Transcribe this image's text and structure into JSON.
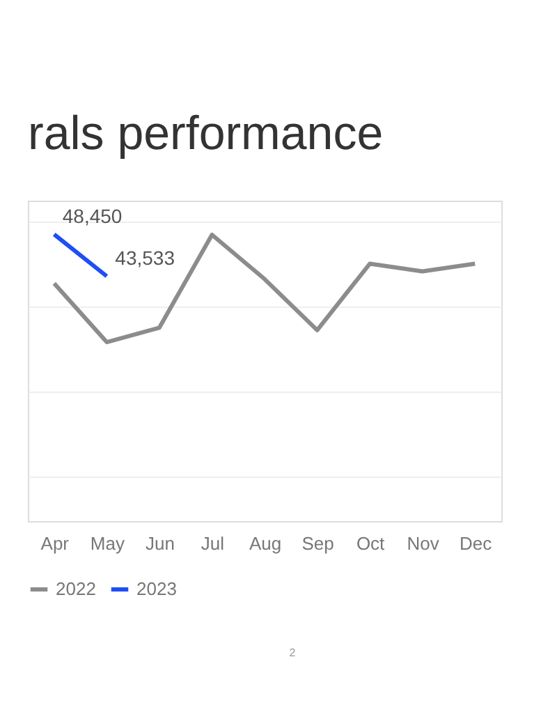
{
  "chart_data": {
    "type": "line",
    "title": "rals performance",
    "ylim": [
      14800,
      52400
    ],
    "categories": [
      "Apr",
      "May",
      "Jun",
      "Jul",
      "Aug",
      "Sep",
      "Oct",
      "Nov",
      "Dec"
    ],
    "series": [
      {
        "name": "2022",
        "color": "#8c8c8c",
        "values": [
          42700,
          35800,
          37500,
          48400,
          43200,
          37200,
          45000,
          44100,
          45000
        ]
      },
      {
        "name": "2023",
        "color": "#1f4ef5",
        "values": [
          48450,
          43533,
          null,
          null,
          null,
          null,
          null,
          null,
          null
        ],
        "value_labels": [
          "48,450",
          "43,533",
          null,
          null,
          null,
          null,
          null,
          null,
          null
        ]
      }
    ],
    "grid": "y",
    "legend": "bottom",
    "marker": "none",
    "line_style": "solid",
    "annotations": [
      "2"
    ]
  }
}
